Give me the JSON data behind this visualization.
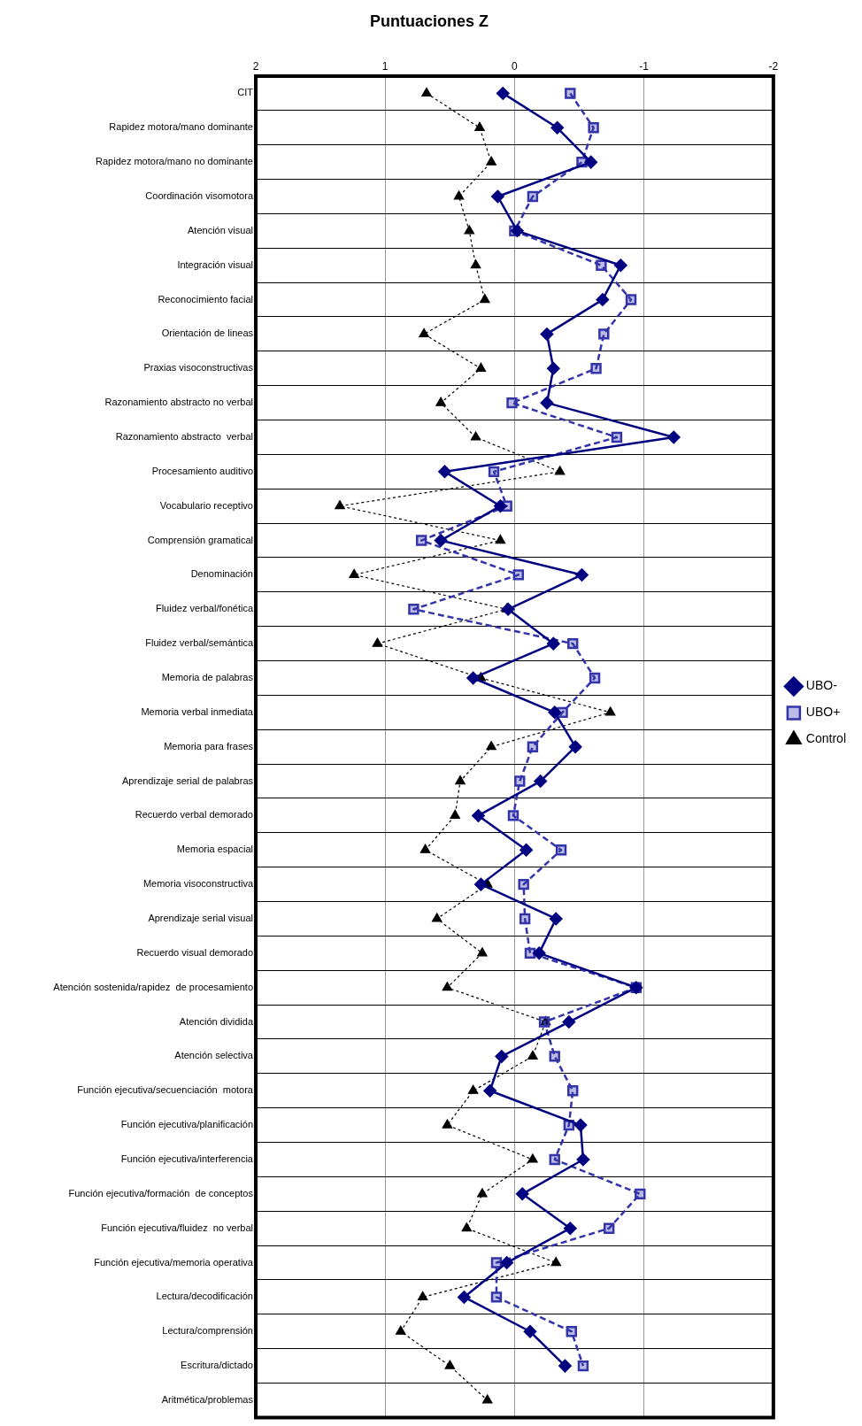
{
  "chart_data": {
    "type": "line",
    "title": "Puntuaciones Z",
    "orientation": "horizontal",
    "categories": [
      "CIT",
      "Rapidez motora/mano dominante",
      "Rapidez motora/mano no dominante",
      "Coordinación visomotora",
      "Atención visual",
      "Integración visual",
      "Reconocimiento facial",
      "Orientación de lineas",
      "Praxias visoconstructivas",
      "Razonamiento abstracto no verbal",
      "Razonamiento abstracto  verbal",
      "Procesamiento auditivo",
      "Vocabulario receptivo",
      "Comprensión gramatical",
      "Denominación",
      "Fluidez verbal/fonética",
      "Fluidez verbal/semántica",
      "Memoria de palabras",
      "Memoria verbal inmediata",
      "Memoria para frases",
      "Aprendizaje serial de palabras",
      "Recuerdo verbal demorado",
      "Memoria espacial",
      "Memoria visoconstructiva",
      "Aprendizaje serial visual",
      "Recuerdo visual demorado",
      "Atención sostenida/rapidez  de procesamiento",
      "Atención dividida",
      "Atención selectiva",
      "Función ejecutiva/secuenciación  motora",
      "Función ejecutiva/planificación",
      "Función ejecutiva/interferencia",
      "Función ejecutiva/formación  de conceptos",
      "Función ejecutiva/fluidez  no verbal",
      "Función ejecutiva/memoria operativa",
      "Lectura/decodificación",
      "Lectura/comprensión",
      "Escritura/dictado",
      "Aritmética/problemas"
    ],
    "series": [
      {
        "name": "UBO-",
        "color": "#000080",
        "marker": "diamond",
        "line_style": "solid",
        "values": [
          0.09,
          -0.33,
          -0.59,
          0.13,
          -0.02,
          -0.82,
          -0.68,
          -0.25,
          -0.3,
          -0.25,
          -1.23,
          0.54,
          0.11,
          0.57,
          -0.52,
          0.05,
          -0.3,
          0.32,
          -0.31,
          -0.47,
          -0.2,
          0.28,
          -0.09,
          0.26,
          -0.32,
          -0.19,
          -0.94,
          -0.42,
          0.1,
          0.19,
          -0.51,
          -0.53,
          -0.06,
          -0.43,
          0.06,
          0.39,
          -0.12,
          -0.39,
          null
        ]
      },
      {
        "name": "UBO+",
        "color": "#3333aa",
        "marker": "square",
        "line_style": "dashed",
        "values": [
          -0.43,
          -0.61,
          -0.52,
          -0.14,
          0,
          -0.67,
          -0.9,
          -0.69,
          -0.63,
          0.02,
          -0.79,
          0.16,
          0.06,
          0.72,
          -0.03,
          0.78,
          -0.45,
          -0.62,
          -0.37,
          -0.14,
          -0.04,
          0.01,
          -0.36,
          -0.07,
          -0.08,
          -0.12,
          -0.94,
          -0.23,
          -0.31,
          -0.45,
          -0.42,
          -0.31,
          -0.97,
          -0.73,
          0.14,
          0.14,
          -0.44,
          -0.53,
          null
        ]
      },
      {
        "name": "Control",
        "color": "#000000",
        "marker": "triangle",
        "line_style": "dotted",
        "values": [
          0.68,
          0.27,
          0.18,
          0.43,
          0.35,
          0.3,
          0.23,
          0.7,
          0.26,
          0.57,
          0.3,
          -0.35,
          1.35,
          0.11,
          1.24,
          0.06,
          1.06,
          0.26,
          -0.74,
          0.18,
          0.42,
          0.46,
          0.69,
          0.21,
          0.6,
          0.25,
          0.52,
          -0.24,
          -0.14,
          0.32,
          0.52,
          -0.14,
          0.25,
          0.37,
          -0.32,
          0.71,
          0.88,
          0.5,
          0.21
        ]
      }
    ],
    "xlim": [
      2,
      -2
    ],
    "xticks": [
      2,
      1,
      0,
      -1,
      -2
    ],
    "grid": true,
    "legend": "right"
  }
}
